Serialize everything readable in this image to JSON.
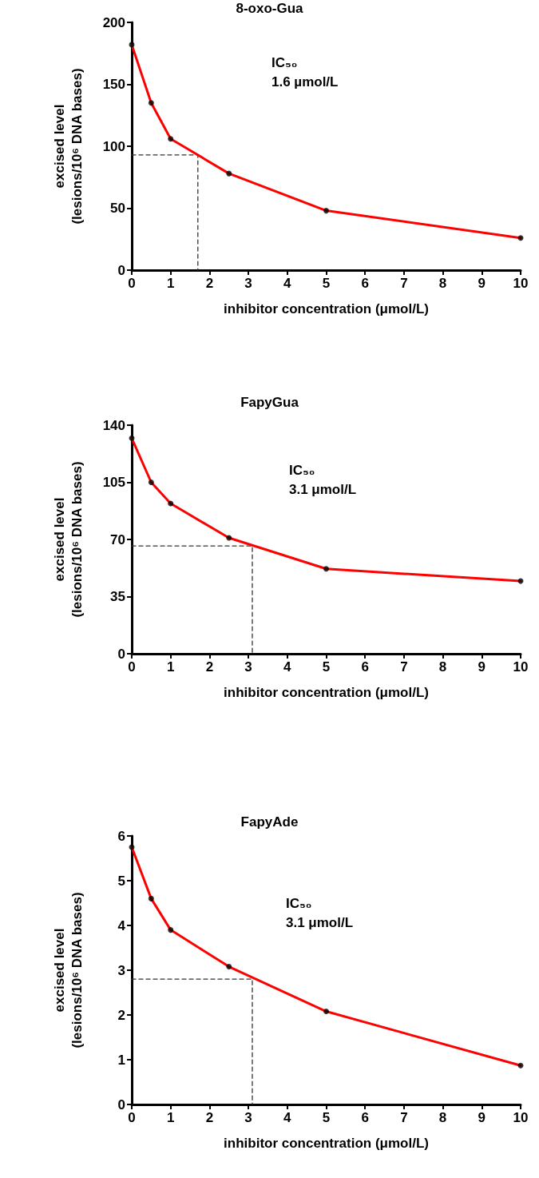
{
  "chart_data": [
    {
      "type": "line",
      "title": "8-oxo-Gua",
      "xlabel": "inhibitor concentration (μmol/L)",
      "ylabel": "excised level\n(lesions/10⁶ DNA bases)",
      "annotations": [
        "IC₅₀",
        "1.6 µmol/L"
      ],
      "xlim": [
        0,
        10
      ],
      "xticks": [
        0,
        1,
        2,
        3,
        4,
        5,
        6,
        7,
        8,
        9,
        10
      ],
      "ylim": [
        0,
        200
      ],
      "yticks": [
        0,
        50,
        100,
        150,
        200
      ],
      "grid": false,
      "series": [
        {
          "color": "#ff0000",
          "marker": "none",
          "line_style": "solid",
          "x": [
            0,
            0.5,
            1,
            2.5,
            5,
            10
          ],
          "values": [
            182,
            135,
            106,
            78,
            48,
            26
          ]
        },
        {
          "type": "scatter",
          "color": "#000000",
          "marker": "circle",
          "x": [
            0,
            0.5,
            1,
            2.5,
            5,
            10
          ],
          "values": [
            182,
            135,
            106,
            78,
            48,
            26
          ]
        },
        {
          "color": "#333333",
          "marker": "none",
          "line_style": "dashed",
          "x": [
            0,
            1.7,
            1.7
          ],
          "values": [
            93,
            93,
            0
          ]
        }
      ]
    },
    {
      "type": "line",
      "title": "FapyGua",
      "xlabel": "inhibitor concentration (μmol/L)",
      "ylabel": "excised level\n(lesions/10⁶ DNA bases)",
      "annotations": [
        "IC₅₀",
        "3.1 μmol/L"
      ],
      "xlim": [
        0,
        10
      ],
      "xticks": [
        0,
        1,
        2,
        3,
        4,
        5,
        6,
        7,
        8,
        9,
        10
      ],
      "ylim": [
        0,
        140
      ],
      "yticks": [
        0,
        35,
        70,
        105,
        140
      ],
      "grid": false,
      "series": [
        {
          "color": "#ff0000",
          "marker": "none",
          "line_style": "solid",
          "x": [
            0,
            0.5,
            1,
            2.5,
            5,
            10
          ],
          "values": [
            132,
            105,
            92,
            71,
            52,
            44.5
          ]
        },
        {
          "type": "scatter",
          "color": "#000000",
          "marker": "circle",
          "x": [
            0,
            0.5,
            1,
            2.5,
            5,
            10
          ],
          "values": [
            132,
            105,
            92,
            71,
            52,
            44.5
          ]
        },
        {
          "color": "#333333",
          "marker": "none",
          "line_style": "dashed",
          "x": [
            0,
            3.1,
            3.1
          ],
          "values": [
            66,
            66,
            0
          ]
        }
      ]
    },
    {
      "type": "line",
      "title": "FapyAde",
      "xlabel": "inhibitor concentration (μmol/L)",
      "ylabel": "excised level\n(lesions/10⁶ DNA bases)",
      "annotations": [
        "IC₅₀",
        "3.1 μmol/L"
      ],
      "xlim": [
        0,
        10
      ],
      "xticks": [
        0,
        1,
        2,
        3,
        4,
        5,
        6,
        7,
        8,
        9,
        10
      ],
      "ylim": [
        0,
        6
      ],
      "yticks": [
        0,
        1,
        2,
        3,
        4,
        5,
        6
      ],
      "grid": false,
      "series": [
        {
          "color": "#ff0000",
          "marker": "none",
          "line_style": "solid",
          "x": [
            0,
            0.5,
            1,
            2.5,
            5,
            10
          ],
          "values": [
            5.75,
            4.6,
            3.9,
            3.08,
            2.08,
            0.87
          ]
        },
        {
          "type": "scatter",
          "color": "#000000",
          "marker": "circle",
          "x": [
            0,
            0.5,
            1,
            2.5,
            5,
            10
          ],
          "values": [
            5.75,
            4.6,
            3.9,
            3.08,
            2.08,
            0.87
          ]
        },
        {
          "color": "#333333",
          "marker": "none",
          "line_style": "dashed",
          "x": [
            0,
            3.1,
            3.1
          ],
          "values": [
            2.8,
            2.8,
            0
          ]
        }
      ]
    }
  ]
}
